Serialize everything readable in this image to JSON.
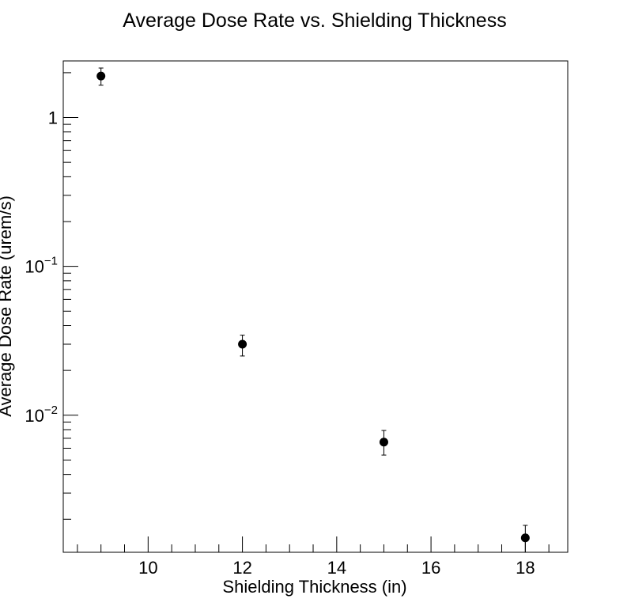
{
  "chart_data": {
    "type": "scatter",
    "title": "Average Dose Rate vs. Shielding Thickness",
    "xlabel": "Shielding Thickness (in)",
    "ylabel": "Average Dose Rate (urem/s)",
    "xlim": [
      8.2,
      18.9
    ],
    "ylim": [
      0.0012,
      2.4
    ],
    "yscale": "log",
    "x_ticks": [
      10,
      12,
      14,
      16,
      18
    ],
    "y_ticks": [
      {
        "base": "1",
        "exp": "",
        "value": 1
      },
      {
        "base": "10",
        "exp": "−1",
        "value": 0.1
      },
      {
        "base": "10",
        "exp": "−2",
        "value": 0.01
      }
    ],
    "grid": false,
    "points": [
      {
        "x": 9,
        "y": 1.9,
        "err_low": 0.25,
        "err_high": 0.25
      },
      {
        "x": 12,
        "y": 0.03,
        "err_low": 0.005,
        "err_high": 0.0045
      },
      {
        "x": 15,
        "y": 0.0066,
        "err_low": 0.0012,
        "err_high": 0.0013
      },
      {
        "x": 18,
        "y": 0.0015,
        "err_low": 0.0003,
        "err_high": 0.00032
      }
    ],
    "marker_color": "#000000"
  }
}
